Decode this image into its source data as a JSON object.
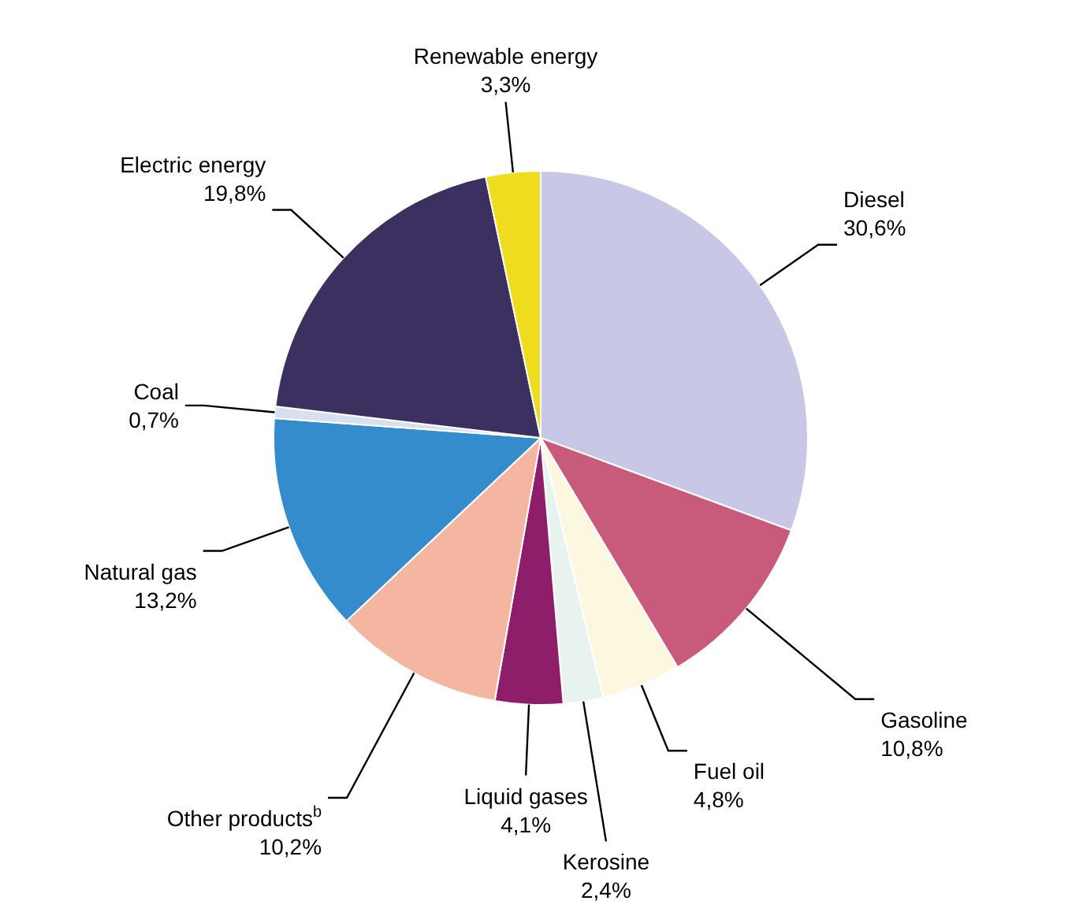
{
  "chart_data": {
    "type": "pie",
    "categories": [
      "Diesel",
      "Gasoline",
      "Fuel oil",
      "Kerosine",
      "Liquid gases",
      "Other products$^{b}$",
      "Natural gas",
      "Coal",
      "Electric energy",
      "Renewable energy"
    ],
    "values": [
      30.6,
      10.8,
      4.8,
      2.4,
      4.1,
      10.2,
      13.2,
      0.7,
      19.8,
      3.3
    ],
    "value_labels": [
      "30,6%",
      "10,8%",
      "4,8%",
      "2,4%",
      "4,1%",
      "10,2%",
      "13,2%",
      "0,7%",
      "19,8%",
      "3,3%"
    ],
    "colors": [
      "#c8c8e6",
      "#c85a7c",
      "#fcf8e0",
      "#e8f2ee",
      "#8e1d6a",
      "#f4b6a0",
      "#348ccc",
      "#d8e0f0",
      "#3c3060",
      "#f0dc1e"
    ],
    "legend": false
  }
}
